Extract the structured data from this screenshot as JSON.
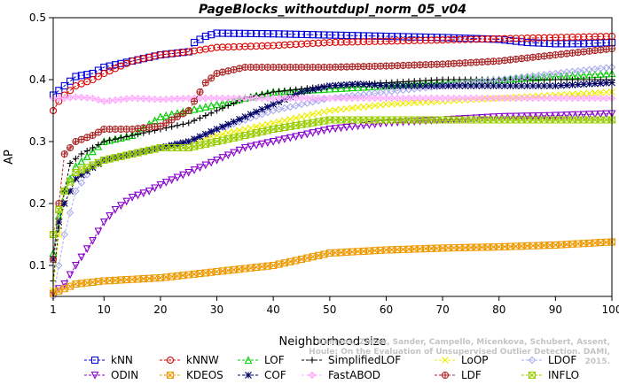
{
  "chart_data": {
    "type": "line",
    "title": "PageBlocks_withoutdupl_norm_05_v04",
    "xlabel": "Neighborhood size",
    "ylabel": "AP",
    "xlim": [
      1,
      100
    ],
    "ylim": [
      0.05,
      0.5
    ],
    "x_ticks": [
      1,
      10,
      20,
      30,
      40,
      50,
      60,
      70,
      80,
      90,
      100
    ],
    "y_ticks": [
      0.1,
      0.2,
      0.3,
      0.4,
      0.5
    ],
    "y_tick_labels": [
      "0.1",
      "0.2",
      "0.3",
      "0.4",
      "0.5"
    ],
    "grid": false,
    "legend_position": "bottom",
    "series": [
      {
        "name": "kNN",
        "color": "#0000dd",
        "marker": "square",
        "points": [
          [
            1,
            0.375
          ],
          [
            3,
            0.39
          ],
          [
            5,
            0.405
          ],
          [
            8,
            0.41
          ],
          [
            10,
            0.42
          ],
          [
            15,
            0.43
          ],
          [
            20,
            0.44
          ],
          [
            25,
            0.445
          ],
          [
            26,
            0.46
          ],
          [
            28,
            0.47
          ],
          [
            30,
            0.475
          ],
          [
            40,
            0.474
          ],
          [
            50,
            0.472
          ],
          [
            60,
            0.47
          ],
          [
            70,
            0.468
          ],
          [
            80,
            0.465
          ],
          [
            85,
            0.46
          ],
          [
            90,
            0.458
          ],
          [
            95,
            0.458
          ],
          [
            100,
            0.46
          ]
        ]
      },
      {
        "name": "kNNW",
        "color": "#dd0000",
        "marker": "circle",
        "points": [
          [
            1,
            0.35
          ],
          [
            2,
            0.365
          ],
          [
            3,
            0.375
          ],
          [
            5,
            0.39
          ],
          [
            8,
            0.4
          ],
          [
            10,
            0.41
          ],
          [
            15,
            0.43
          ],
          [
            20,
            0.44
          ],
          [
            25,
            0.445
          ],
          [
            30,
            0.452
          ],
          [
            40,
            0.455
          ],
          [
            50,
            0.46
          ],
          [
            60,
            0.462
          ],
          [
            70,
            0.464
          ],
          [
            80,
            0.466
          ],
          [
            90,
            0.468
          ],
          [
            100,
            0.47
          ]
        ]
      },
      {
        "name": "LOF",
        "color": "#00cc00",
        "marker": "triangle-up",
        "points": [
          [
            1,
            0.12
          ],
          [
            2,
            0.18
          ],
          [
            3,
            0.22
          ],
          [
            5,
            0.26
          ],
          [
            10,
            0.3
          ],
          [
            15,
            0.31
          ],
          [
            20,
            0.34
          ],
          [
            25,
            0.35
          ],
          [
            30,
            0.36
          ],
          [
            35,
            0.37
          ],
          [
            40,
            0.38
          ],
          [
            50,
            0.385
          ],
          [
            60,
            0.39
          ],
          [
            70,
            0.395
          ],
          [
            80,
            0.4
          ],
          [
            90,
            0.405
          ],
          [
            100,
            0.41
          ]
        ]
      },
      {
        "name": "SimplifiedLOF",
        "color": "#000000",
        "marker": "plus",
        "points": [
          [
            1,
            0.075
          ],
          [
            2,
            0.16
          ],
          [
            3,
            0.22
          ],
          [
            4,
            0.265
          ],
          [
            6,
            0.28
          ],
          [
            10,
            0.3
          ],
          [
            15,
            0.31
          ],
          [
            20,
            0.32
          ],
          [
            25,
            0.33
          ],
          [
            30,
            0.35
          ],
          [
            35,
            0.37
          ],
          [
            40,
            0.38
          ],
          [
            50,
            0.39
          ],
          [
            60,
            0.395
          ],
          [
            70,
            0.4
          ],
          [
            80,
            0.4
          ],
          [
            90,
            0.4
          ],
          [
            100,
            0.4
          ]
        ]
      },
      {
        "name": "LoOP",
        "color": "#eeee00",
        "marker": "x",
        "points": [
          [
            1,
            0.06
          ],
          [
            2,
            0.15
          ],
          [
            3,
            0.2
          ],
          [
            5,
            0.24
          ],
          [
            10,
            0.27
          ],
          [
            15,
            0.28
          ],
          [
            20,
            0.29
          ],
          [
            25,
            0.3
          ],
          [
            30,
            0.31
          ],
          [
            40,
            0.33
          ],
          [
            50,
            0.35
          ],
          [
            60,
            0.36
          ],
          [
            70,
            0.365
          ],
          [
            80,
            0.37
          ],
          [
            90,
            0.375
          ],
          [
            100,
            0.38
          ]
        ]
      },
      {
        "name": "LDOF",
        "color": "#aaaaee",
        "marker": "diamond",
        "points": [
          [
            1,
            0.05
          ],
          [
            3,
            0.15
          ],
          [
            5,
            0.22
          ],
          [
            8,
            0.26
          ],
          [
            10,
            0.27
          ],
          [
            15,
            0.28
          ],
          [
            20,
            0.29
          ],
          [
            25,
            0.3
          ],
          [
            30,
            0.32
          ],
          [
            40,
            0.35
          ],
          [
            50,
            0.37
          ],
          [
            60,
            0.38
          ],
          [
            70,
            0.39
          ],
          [
            80,
            0.4
          ],
          [
            90,
            0.41
          ],
          [
            100,
            0.42
          ]
        ]
      },
      {
        "name": "ODIN",
        "color": "#8800cc",
        "marker": "triangle-down",
        "points": [
          [
            1,
            0.055
          ],
          [
            3,
            0.07
          ],
          [
            5,
            0.1
          ],
          [
            8,
            0.14
          ],
          [
            10,
            0.17
          ],
          [
            12,
            0.19
          ],
          [
            15,
            0.21
          ],
          [
            18,
            0.22
          ],
          [
            20,
            0.23
          ],
          [
            25,
            0.25
          ],
          [
            30,
            0.27
          ],
          [
            35,
            0.29
          ],
          [
            40,
            0.3
          ],
          [
            45,
            0.31
          ],
          [
            50,
            0.32
          ],
          [
            60,
            0.33
          ],
          [
            70,
            0.335
          ],
          [
            80,
            0.34
          ],
          [
            90,
            0.342
          ],
          [
            100,
            0.345
          ]
        ]
      },
      {
        "name": "KDEOS",
        "color": "#ee9900",
        "marker": "square-x",
        "points": [
          [
            1,
            0.055
          ],
          [
            5,
            0.07
          ],
          [
            10,
            0.075
          ],
          [
            20,
            0.08
          ],
          [
            30,
            0.09
          ],
          [
            40,
            0.1
          ],
          [
            50,
            0.12
          ],
          [
            60,
            0.125
          ],
          [
            70,
            0.128
          ],
          [
            80,
            0.13
          ],
          [
            90,
            0.133
          ],
          [
            100,
            0.138
          ]
        ]
      },
      {
        "name": "COF",
        "color": "#000066",
        "marker": "asterisk",
        "points": [
          [
            1,
            0.11
          ],
          [
            2,
            0.17
          ],
          [
            3,
            0.2
          ],
          [
            5,
            0.24
          ],
          [
            10,
            0.27
          ],
          [
            15,
            0.28
          ],
          [
            20,
            0.29
          ],
          [
            25,
            0.3
          ],
          [
            30,
            0.32
          ],
          [
            35,
            0.34
          ],
          [
            40,
            0.36
          ],
          [
            45,
            0.38
          ],
          [
            50,
            0.39
          ],
          [
            55,
            0.393
          ],
          [
            60,
            0.39
          ],
          [
            70,
            0.39
          ],
          [
            80,
            0.39
          ],
          [
            90,
            0.39
          ],
          [
            100,
            0.395
          ]
        ]
      },
      {
        "name": "FastABOD",
        "color": "#ffaaff",
        "marker": "diamond-plus",
        "points": [
          [
            1,
            0.37
          ],
          [
            3,
            0.37
          ],
          [
            5,
            0.372
          ],
          [
            8,
            0.37
          ],
          [
            10,
            0.365
          ],
          [
            15,
            0.37
          ],
          [
            20,
            0.368
          ],
          [
            25,
            0.37
          ],
          [
            30,
            0.37
          ],
          [
            40,
            0.37
          ],
          [
            50,
            0.37
          ],
          [
            60,
            0.37
          ],
          [
            70,
            0.37
          ],
          [
            80,
            0.37
          ],
          [
            90,
            0.37
          ],
          [
            100,
            0.37
          ]
        ]
      },
      {
        "name": "LDF",
        "color": "#aa2222",
        "marker": "circle-plus",
        "points": [
          [
            1,
            0.11
          ],
          [
            2,
            0.2
          ],
          [
            3,
            0.28
          ],
          [
            5,
            0.3
          ],
          [
            8,
            0.31
          ],
          [
            10,
            0.32
          ],
          [
            15,
            0.32
          ],
          [
            20,
            0.325
          ],
          [
            25,
            0.35
          ],
          [
            27,
            0.38
          ],
          [
            28,
            0.395
          ],
          [
            30,
            0.41
          ],
          [
            35,
            0.42
          ],
          [
            40,
            0.42
          ],
          [
            50,
            0.42
          ],
          [
            60,
            0.422
          ],
          [
            70,
            0.425
          ],
          [
            80,
            0.43
          ],
          [
            90,
            0.44
          ],
          [
            100,
            0.45
          ]
        ]
      },
      {
        "name": "INFLO",
        "color": "#99cc00",
        "marker": "hourglass",
        "points": [
          [
            1,
            0.15
          ],
          [
            2,
            0.19
          ],
          [
            3,
            0.22
          ],
          [
            5,
            0.25
          ],
          [
            10,
            0.27
          ],
          [
            15,
            0.28
          ],
          [
            20,
            0.29
          ],
          [
            25,
            0.29
          ],
          [
            30,
            0.3
          ],
          [
            40,
            0.32
          ],
          [
            50,
            0.335
          ],
          [
            60,
            0.335
          ],
          [
            70,
            0.335
          ],
          [
            80,
            0.335
          ],
          [
            90,
            0.335
          ],
          [
            100,
            0.335
          ]
        ]
      }
    ]
  },
  "credit": "Campos, Zimek, Sander, Campello, Micenkova, Schubert, Assent, Houle: On the Evaluation of Unsupervised Outlier Detection. DAMI, 2015."
}
